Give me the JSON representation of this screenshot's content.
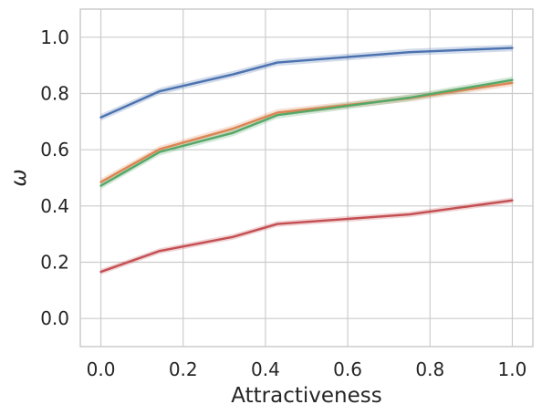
{
  "chart_data": {
    "type": "line",
    "xlabel": "Attractiveness",
    "ylabel": "ω",
    "xlim": [
      -0.05,
      1.05
    ],
    "ylim": [
      -0.1,
      1.1
    ],
    "xticks": [
      "0.0",
      "0.2",
      "0.4",
      "0.6",
      "0.8",
      "1.0"
    ],
    "yticks": [
      "0.0",
      "0.2",
      "0.4",
      "0.6",
      "0.8",
      "1.0"
    ],
    "grid": true,
    "x": [
      0.0,
      0.143,
      0.321,
      0.429,
      0.75,
      1.0
    ],
    "series": [
      {
        "color": "#4c72b0",
        "values": [
          0.715,
          0.808,
          0.868,
          0.91,
          0.947,
          0.962
        ],
        "band": 0.012
      },
      {
        "color": "#dd8452",
        "values": [
          0.485,
          0.602,
          0.675,
          0.732,
          0.783,
          0.838
        ],
        "band": 0.012
      },
      {
        "color": "#55a868",
        "values": [
          0.472,
          0.592,
          0.66,
          0.723,
          0.785,
          0.848
        ],
        "band": 0.012
      },
      {
        "color": "#c44e52",
        "values": [
          0.166,
          0.24,
          0.29,
          0.336,
          0.37,
          0.42
        ],
        "band": 0.01
      }
    ]
  }
}
